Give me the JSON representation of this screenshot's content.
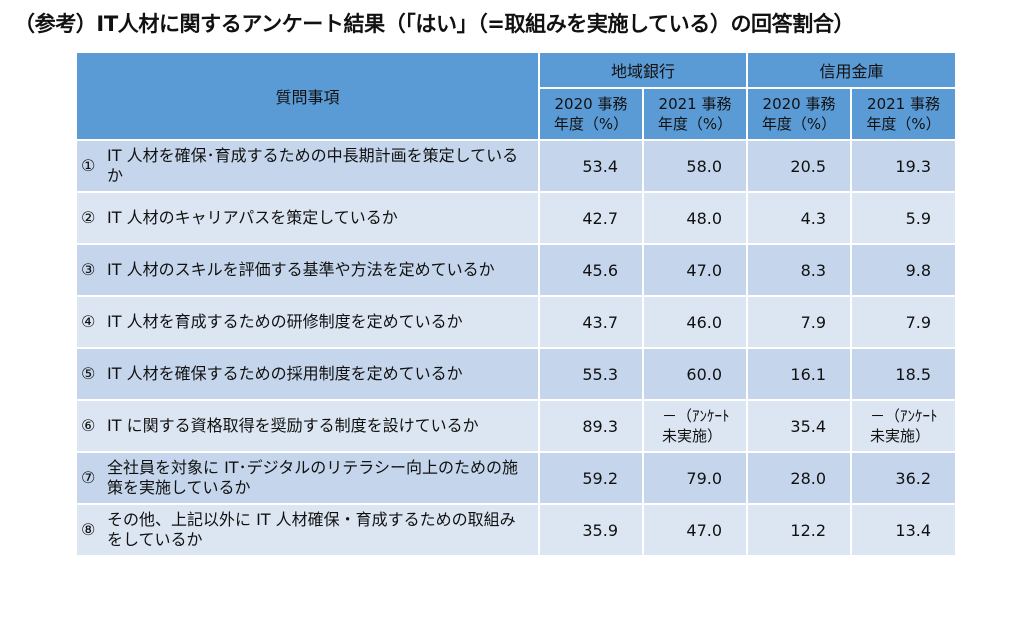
{
  "title": "（参考）IT人材に関するアンケート結果（「はい」（=取組みを実施している）の回答割合）",
  "header": {
    "question_label": "質問事項",
    "groups": [
      {
        "name": "地域銀行",
        "years": [
          "2020 事務\n年度（%）",
          "2021 事務\n年度（%）"
        ]
      },
      {
        "name": "信用金庫",
        "years": [
          "2020 事務\n年度（%）",
          "2021 事務\n年度（%）"
        ]
      }
    ]
  },
  "rows": [
    {
      "num": "①",
      "question": "IT 人材を確保･育成するための中長期計画を策定しているか",
      "values": [
        "53.4",
        "58.0",
        "20.5",
        "19.3"
      ]
    },
    {
      "num": "②",
      "question": "IT 人材のキャリアパスを策定しているか",
      "values": [
        "42.7",
        "48.0",
        "4.3",
        "5.9"
      ]
    },
    {
      "num": "③",
      "question": "IT 人材のスキルを評価する基準や方法を定めているか",
      "values": [
        "45.6",
        "47.0",
        "8.3",
        "9.8"
      ]
    },
    {
      "num": "④",
      "question": "IT 人材を育成するための研修制度を定めているか",
      "values": [
        "43.7",
        "46.0",
        "7.9",
        "7.9"
      ]
    },
    {
      "num": "⑤",
      "question": "IT 人材を確保するための採用制度を定めているか",
      "values": [
        "55.3",
        "60.0",
        "16.1",
        "18.5"
      ]
    },
    {
      "num": "⑥",
      "question": "IT に関する資格取得を奨励する制度を設けているか",
      "values": [
        "89.3",
        "－（ｱﾝｹｰﾄ\n未実施）",
        "35.4",
        "－（ｱﾝｹｰﾄ\n未実施）"
      ]
    },
    {
      "num": "⑦",
      "question": "全社員を対象に IT･デジタルのリテラシー向上のための施策を実施しているか",
      "values": [
        "59.2",
        "79.0",
        "28.0",
        "36.2"
      ]
    },
    {
      "num": "⑧",
      "question": "その他、上記以外に IT 人材確保・育成するための取組みをしているか",
      "values": [
        "35.9",
        "47.0",
        "12.2",
        "13.4"
      ]
    }
  ]
}
